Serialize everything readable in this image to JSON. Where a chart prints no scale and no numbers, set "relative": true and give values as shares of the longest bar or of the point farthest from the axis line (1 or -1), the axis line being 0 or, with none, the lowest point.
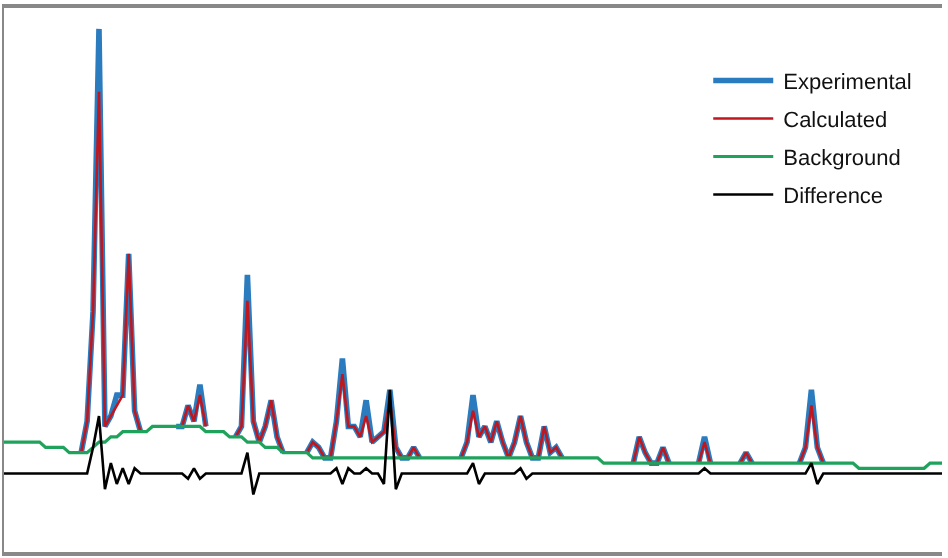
{
  "chart_data": {
    "type": "line",
    "relative": true,
    "legend": "top right",
    "categories": [
      null,
      null,
      null,
      null,
      null,
      null,
      null,
      null,
      null,
      null,
      null,
      null,
      null,
      null,
      null,
      null,
      null,
      null,
      null,
      null,
      null,
      null,
      null,
      null,
      null,
      null,
      null,
      null,
      null,
      null,
      null,
      null,
      null,
      null,
      null,
      null,
      null,
      null,
      null,
      null,
      null,
      null,
      null,
      null,
      null,
      null,
      null,
      null,
      null,
      null,
      null,
      null,
      null,
      null,
      null,
      null,
      null,
      null,
      null,
      null,
      null,
      null,
      null,
      null,
      null,
      null,
      null,
      null,
      null,
      null,
      null,
      null,
      null,
      null,
      null,
      null,
      null,
      null,
      null,
      null,
      null,
      null,
      null,
      null,
      null,
      null,
      null,
      null,
      null,
      null,
      null,
      null,
      null,
      null,
      null,
      null,
      null,
      null,
      null,
      null,
      null,
      null,
      null,
      null,
      null,
      null,
      null,
      null,
      null,
      null,
      null,
      null,
      null,
      null,
      null,
      null,
      null,
      null,
      null,
      null,
      null,
      null,
      null,
      null,
      null,
      null,
      null,
      null,
      null,
      null,
      null,
      null,
      null,
      null,
      null,
      null,
      null,
      null,
      null,
      null,
      null,
      null,
      null,
      null,
      null,
      null,
      null,
      null,
      null,
      null,
      null,
      null,
      null,
      null,
      null,
      null,
      null,
      null,
      null
    ],
    "series": [
      {
        "name": "Experimental",
        "color": "#2b7bbf",
        "values": [
          null,
          null,
          null,
          null,
          null,
          null,
          null,
          null,
          null,
          null,
          null,
          null,
          null,
          0.19,
          0.25,
          0.46,
          1.0,
          0.24,
          0.26,
          0.3,
          0.3,
          0.57,
          0.27,
          0.23,
          null,
          null,
          null,
          null,
          null,
          0.24,
          0.24,
          0.28,
          0.25,
          0.32,
          0.24,
          null,
          null,
          null,
          null,
          0.22,
          0.24,
          0.53,
          0.25,
          0.21,
          0.24,
          0.29,
          0.22,
          0.19,
          null,
          null,
          null,
          0.19,
          0.21,
          0.2,
          0.18,
          0.18,
          0.25,
          0.37,
          0.24,
          0.24,
          0.22,
          0.29,
          0.21,
          0.22,
          0.23,
          0.31,
          0.2,
          0.18,
          0.18,
          0.2,
          0.18,
          null,
          null,
          null,
          null,
          null,
          null,
          0.18,
          0.21,
          0.3,
          0.22,
          0.24,
          0.21,
          0.25,
          0.21,
          0.18,
          0.21,
          0.26,
          0.21,
          0.18,
          0.18,
          0.24,
          0.19,
          0.2,
          0.18,
          null,
          null,
          null,
          null,
          null,
          null,
          null,
          null,
          null,
          null,
          null,
          0.17,
          0.22,
          0.19,
          0.17,
          0.17,
          0.2,
          0.17,
          null,
          null,
          null,
          null,
          0.17,
          0.22,
          0.17,
          null,
          null,
          null,
          null,
          0.17,
          0.19,
          0.17,
          null,
          null,
          null,
          null,
          null,
          null,
          null,
          0.17,
          0.2,
          0.31,
          0.2,
          0.17,
          null,
          null,
          null,
          null,
          null,
          null,
          null,
          null,
          null,
          null,
          null,
          null,
          null,
          null,
          null,
          null,
          null,
          null,
          null,
          null
        ]
      },
      {
        "name": "Calculated",
        "color": "#c0161e",
        "values": [
          null,
          null,
          null,
          null,
          null,
          null,
          null,
          null,
          null,
          null,
          null,
          null,
          null,
          0.19,
          0.25,
          0.46,
          0.88,
          0.24,
          0.26,
          0.28,
          0.3,
          0.57,
          0.27,
          0.23,
          null,
          null,
          null,
          null,
          null,
          0.24,
          0.24,
          0.28,
          0.25,
          0.3,
          0.24,
          null,
          null,
          null,
          null,
          0.22,
          0.24,
          0.48,
          0.25,
          0.21,
          0.24,
          0.29,
          0.22,
          0.19,
          null,
          null,
          null,
          0.19,
          0.21,
          0.2,
          0.18,
          0.18,
          0.25,
          0.34,
          0.24,
          0.24,
          0.22,
          0.26,
          0.21,
          0.22,
          0.23,
          0.29,
          0.2,
          0.18,
          0.18,
          0.2,
          0.18,
          null,
          null,
          null,
          null,
          null,
          null,
          0.18,
          0.21,
          0.27,
          0.22,
          0.24,
          0.21,
          0.25,
          0.21,
          0.18,
          0.21,
          0.26,
          0.21,
          0.18,
          0.18,
          0.24,
          0.19,
          0.2,
          0.18,
          null,
          null,
          null,
          null,
          null,
          null,
          null,
          null,
          null,
          null,
          null,
          0.17,
          0.22,
          0.19,
          0.17,
          0.17,
          0.2,
          0.17,
          null,
          null,
          null,
          null,
          0.17,
          0.21,
          0.17,
          null,
          null,
          null,
          null,
          0.17,
          0.19,
          0.17,
          null,
          null,
          null,
          null,
          null,
          null,
          null,
          0.17,
          0.2,
          0.28,
          0.2,
          0.17,
          null,
          null,
          null,
          null,
          null,
          null,
          null,
          null,
          null,
          null,
          null,
          null,
          null,
          null,
          null,
          null,
          null,
          null,
          null,
          null
        ]
      },
      {
        "name": "Background",
        "color": "#1fa35c",
        "values": [
          0.21,
          0.21,
          0.21,
          0.21,
          0.21,
          0.21,
          0.21,
          0.2,
          0.2,
          0.2,
          0.2,
          0.19,
          0.19,
          0.19,
          0.19,
          0.2,
          0.21,
          0.21,
          0.22,
          0.22,
          0.23,
          0.23,
          0.23,
          0.23,
          0.23,
          0.24,
          0.24,
          0.24,
          0.24,
          0.24,
          0.24,
          0.24,
          0.24,
          0.24,
          0.23,
          0.23,
          0.23,
          0.23,
          0.22,
          0.22,
          0.22,
          0.21,
          0.21,
          0.21,
          0.2,
          0.2,
          0.2,
          0.19,
          0.19,
          0.19,
          0.19,
          0.19,
          0.18,
          0.18,
          0.18,
          0.18,
          0.18,
          0.18,
          0.18,
          0.18,
          0.18,
          0.18,
          0.18,
          0.18,
          0.18,
          0.18,
          0.18,
          0.18,
          0.18,
          0.18,
          0.18,
          0.18,
          0.18,
          0.18,
          0.18,
          0.18,
          0.18,
          0.18,
          0.18,
          0.18,
          0.18,
          0.18,
          0.18,
          0.18,
          0.18,
          0.18,
          0.18,
          0.18,
          0.18,
          0.18,
          0.18,
          0.18,
          0.18,
          0.18,
          0.18,
          0.18,
          0.18,
          0.18,
          0.18,
          0.18,
          0.18,
          0.17,
          0.17,
          0.17,
          0.17,
          0.17,
          0.17,
          0.17,
          0.17,
          0.17,
          0.17,
          0.17,
          0.17,
          0.17,
          0.17,
          0.17,
          0.17,
          0.17,
          0.17,
          0.17,
          0.17,
          0.17,
          0.17,
          0.17,
          0.17,
          0.17,
          0.17,
          0.17,
          0.17,
          0.17,
          0.17,
          0.17,
          0.17,
          0.17,
          0.17,
          0.17,
          0.17,
          0.17,
          0.17,
          0.17,
          0.17,
          0.17,
          0.17,
          0.17,
          0.16,
          0.16,
          0.16,
          0.16,
          0.16,
          0.16,
          0.16,
          0.16,
          0.16,
          0.16,
          0.16,
          0.16,
          0.17,
          0.17,
          0.17
        ]
      },
      {
        "name": "Difference",
        "color": "#000000",
        "values": [
          0.15,
          0.15,
          0.15,
          0.15,
          0.15,
          0.15,
          0.15,
          0.15,
          0.15,
          0.15,
          0.15,
          0.15,
          0.15,
          0.15,
          0.15,
          0.2,
          0.26,
          0.12,
          0.17,
          0.13,
          0.16,
          0.13,
          0.16,
          0.15,
          0.15,
          0.15,
          0.15,
          0.15,
          0.15,
          0.15,
          0.15,
          0.14,
          0.16,
          0.14,
          0.15,
          0.15,
          0.15,
          0.15,
          0.15,
          0.15,
          0.15,
          0.19,
          0.11,
          0.15,
          0.15,
          0.15,
          0.15,
          0.15,
          0.15,
          0.15,
          0.15,
          0.15,
          0.15,
          0.15,
          0.15,
          0.15,
          0.16,
          0.13,
          0.16,
          0.15,
          0.15,
          0.16,
          0.15,
          0.15,
          0.13,
          0.31,
          0.12,
          0.15,
          0.15,
          0.15,
          0.15,
          0.15,
          0.15,
          0.15,
          0.15,
          0.15,
          0.15,
          0.15,
          0.15,
          0.17,
          0.13,
          0.15,
          0.15,
          0.15,
          0.15,
          0.15,
          0.15,
          0.16,
          0.14,
          0.15,
          0.15,
          0.15,
          0.15,
          0.15,
          0.15,
          0.15,
          0.15,
          0.15,
          0.15,
          0.15,
          0.15,
          0.15,
          0.15,
          0.15,
          0.15,
          0.15,
          0.15,
          0.15,
          0.15,
          0.15,
          0.15,
          0.15,
          0.15,
          0.15,
          0.15,
          0.15,
          0.15,
          0.15,
          0.16,
          0.15,
          0.15,
          0.15,
          0.15,
          0.15,
          0.15,
          0.15,
          0.15,
          0.15,
          0.15,
          0.15,
          0.15,
          0.15,
          0.15,
          0.15,
          0.15,
          0.15,
          0.17,
          0.13,
          0.15,
          0.15,
          0.15,
          0.15,
          0.15,
          0.15,
          0.15,
          0.15,
          0.15,
          0.15,
          0.15,
          0.15,
          0.15,
          0.15,
          0.15,
          0.15,
          0.15,
          0.15,
          0.15,
          0.15,
          0.15
        ]
      }
    ]
  }
}
